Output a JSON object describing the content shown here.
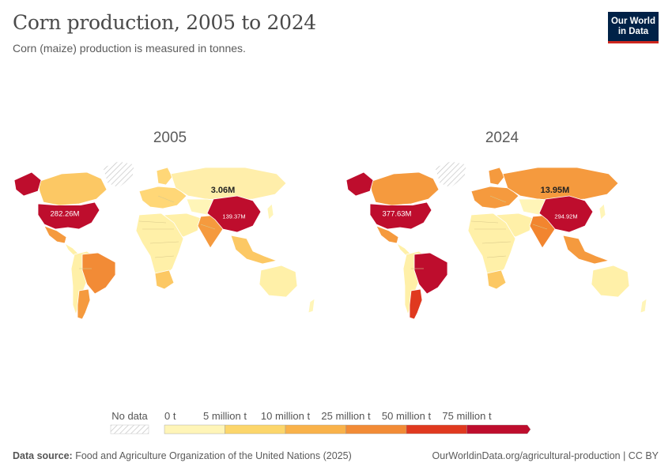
{
  "header": {
    "title": "Corn production, 2005 to 2024",
    "subtitle": "Corn (maize) production is measured in tonnes.",
    "logo_line1": "Our World",
    "logo_line2": "in Data"
  },
  "chart_data": {
    "type": "choropleth-map",
    "metric": "Corn (maize) production",
    "unit": "tonnes",
    "panels": [
      {
        "year": "2005",
        "labeled_values": [
          {
            "country": "United States",
            "label": "282.26M",
            "value": 282260000
          },
          {
            "country": "China",
            "label": "139.37M",
            "value": 139370000
          },
          {
            "country": "Russia",
            "label": "3.06M",
            "value": 3060000
          }
        ],
        "fills": {
          "usa": "#be0d2d",
          "canada": "#fcc864",
          "mexico": "#f59a3e",
          "brazil": "#f28b36",
          "argentina": "#f59a3e",
          "southam": "#fff0a8",
          "russia": "#ffeeaa",
          "china": "#be0d2d",
          "india": "#f59a3e",
          "europe": "#ffd777",
          "africa": "#fff0a8",
          "southafrica": "#fcc864",
          "australia": "#fff0a8",
          "seasia": "#fcc864",
          "middleeast": "#fff0a8",
          "centralasia": "#fff5b8"
        }
      },
      {
        "year": "2024",
        "labeled_values": [
          {
            "country": "United States",
            "label": "377.63M",
            "value": 377630000
          },
          {
            "country": "China",
            "label": "294.92M",
            "value": 294920000
          },
          {
            "country": "Russia",
            "label": "13.95M",
            "value": 13950000
          }
        ],
        "fills": {
          "usa": "#be0d2d",
          "canada": "#f59a3e",
          "mexico": "#f59a3e",
          "brazil": "#be0d2d",
          "argentina": "#e0391f",
          "southam": "#fff0a8",
          "russia": "#f59a3e",
          "china": "#be0d2d",
          "india": "#f2852f",
          "europe": "#f59a3e",
          "africa": "#fff0a8",
          "southafrica": "#fcc864",
          "australia": "#fff0a8",
          "seasia": "#f59a3e",
          "middleeast": "#fff0a8",
          "centralasia": "#fff5b8"
        }
      }
    ],
    "legend": {
      "no_data_label": "No data",
      "bins": [
        {
          "from": "0 t",
          "to": "5 million t",
          "color": "#fff5b8"
        },
        {
          "from": "5 million t",
          "to": "10 million t",
          "color": "#fcd66b"
        },
        {
          "from": "10 million t",
          "to": "25 million t",
          "color": "#f9b24a"
        },
        {
          "from": "25 million t",
          "to": "50 million t",
          "color": "#f28b36"
        },
        {
          "from": "50 million t",
          "to": "75 million t",
          "color": "#e0391f"
        },
        {
          "from": "75 million t",
          "to": "",
          "color": "#be0d2d"
        }
      ],
      "tick_labels": [
        "0 t",
        "5 million t",
        "10 million t",
        "25 million t",
        "50 million t",
        "75 million t"
      ]
    }
  },
  "footer": {
    "source_label": "Data source:",
    "source_text": "Food and Agriculture Organization of the United Nations (2025)",
    "right_text": "OurWorldinData.org/agricultural-production | CC BY"
  }
}
